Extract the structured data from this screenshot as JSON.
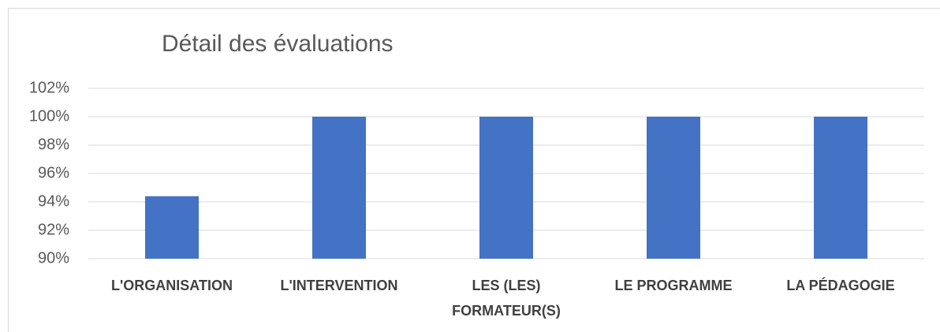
{
  "chart_data": {
    "type": "bar",
    "title": "Détail des évaluations",
    "categories": [
      "L'ORGANISATION",
      "L'INTERVENTION",
      "LES (LES) FORMATEUR(S)",
      "LE PROGRAMME",
      "LA PÉDAGOGIE"
    ],
    "values": [
      94.4,
      100,
      100,
      100,
      100
    ],
    "color": "#4472c4",
    "ylim": [
      90,
      102
    ],
    "yticks": [
      {
        "value": 90,
        "label": "90%"
      },
      {
        "value": 92,
        "label": "92%"
      },
      {
        "value": 94,
        "label": "94%"
      },
      {
        "value": 96,
        "label": "96%"
      },
      {
        "value": 98,
        "label": "98%"
      },
      {
        "value": 100,
        "label": "100%"
      },
      {
        "value": 102,
        "label": "102%"
      }
    ],
    "grid": true
  }
}
